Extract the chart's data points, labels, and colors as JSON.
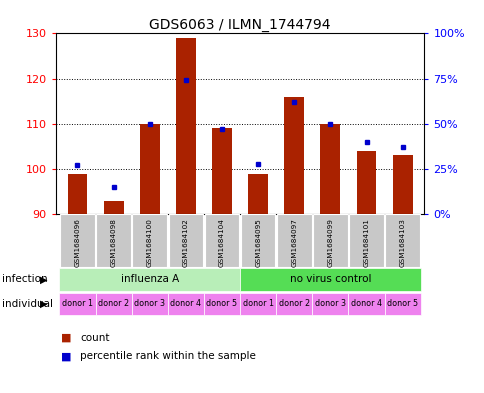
{
  "title": "GDS6063 / ILMN_1744794",
  "samples": [
    "GSM1684096",
    "GSM1684098",
    "GSM1684100",
    "GSM1684102",
    "GSM1684104",
    "GSM1684095",
    "GSM1684097",
    "GSM1684099",
    "GSM1684101",
    "GSM1684103"
  ],
  "counts": [
    99,
    93,
    110,
    129,
    109,
    99,
    116,
    110,
    104,
    103
  ],
  "percentiles": [
    27,
    15,
    50,
    74,
    47,
    28,
    62,
    50,
    40,
    37
  ],
  "ylim_left": [
    90,
    130
  ],
  "ylim_right": [
    0,
    100
  ],
  "yticks_left": [
    90,
    100,
    110,
    120,
    130
  ],
  "yticks_right": [
    0,
    25,
    50,
    75,
    100
  ],
  "ytick_labels_right": [
    "0%",
    "25%",
    "50%",
    "75%",
    "100%"
  ],
  "infection_groups": [
    {
      "label": "influenza A",
      "start": 0,
      "end": 5,
      "color": "#B8EEB8"
    },
    {
      "label": "no virus control",
      "start": 5,
      "end": 10,
      "color": "#55DD55"
    }
  ],
  "individual_labels": [
    "donor 1",
    "donor 2",
    "donor 3",
    "donor 4",
    "donor 5",
    "donor 1",
    "donor 2",
    "donor 3",
    "donor 4",
    "donor 5"
  ],
  "individual_color": "#EE82EE",
  "bar_color": "#AA2200",
  "percentile_color": "#0000CC",
  "baseline": 90,
  "sample_bg_color": "#C8C8C8"
}
